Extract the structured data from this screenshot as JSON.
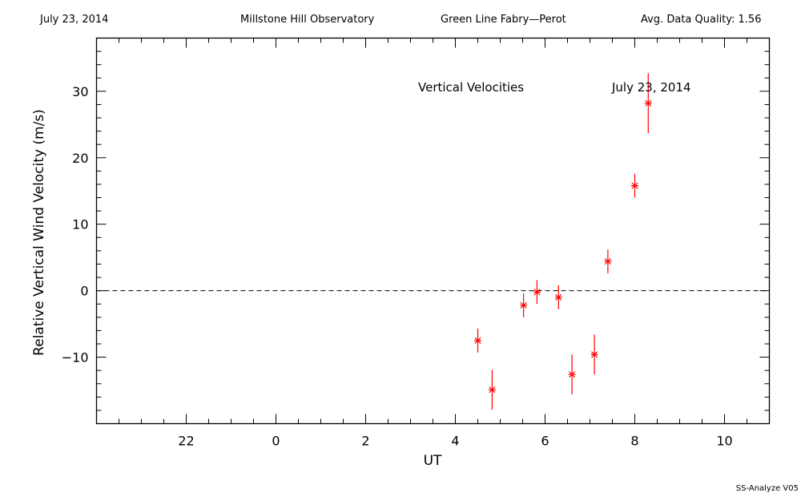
{
  "header": {
    "date": "July 23, 2014",
    "observatory": "Millstone Hill Observatory",
    "instrument": "Green Line Fabry—Perot",
    "quality": "Avg. Data Quality: 1.56"
  },
  "footer": "SS-Analyze V05",
  "chart_data": {
    "type": "scatter",
    "title": "",
    "annotations": [
      "Vertical Velocities",
      "July 23, 2014"
    ],
    "xlabel": "UT",
    "ylabel": "Relative Vertical Wind Velocity (m/s)",
    "x_ticks": [
      22,
      0,
      2,
      4,
      6,
      8,
      10
    ],
    "x_tick_labels": [
      "22",
      "0",
      "2",
      "4",
      "6",
      "8",
      "10"
    ],
    "xlim": [
      -4.0,
      11.0
    ],
    "y_ticks": [
      -10,
      0,
      10,
      20,
      30
    ],
    "y_tick_labels": [
      "−10",
      "0",
      "10",
      "20",
      "30"
    ],
    "ylim": [
      -20,
      38
    ],
    "zero_line": "dashed",
    "marker": "asterisk",
    "marker_color": "#ff0000",
    "series": [
      {
        "points": [
          {
            "x": 4.5,
            "y": -7.5,
            "err": 0.6
          },
          {
            "x": 4.82,
            "y": -14.9,
            "err": 1.0
          },
          {
            "x": 5.52,
            "y": -2.2,
            "err": 0.6
          },
          {
            "x": 5.82,
            "y": -0.2,
            "err": 0.6
          },
          {
            "x": 6.3,
            "y": -1.0,
            "err": 0.6
          },
          {
            "x": 6.6,
            "y": -12.6,
            "err": 1.0
          },
          {
            "x": 7.1,
            "y": -9.6,
            "err": 1.0
          },
          {
            "x": 7.4,
            "y": 4.4,
            "err": 0.6
          },
          {
            "x": 8.0,
            "y": 15.8,
            "err": 0.6
          },
          {
            "x": 8.3,
            "y": 28.2,
            "err": 1.5
          }
        ]
      }
    ]
  }
}
